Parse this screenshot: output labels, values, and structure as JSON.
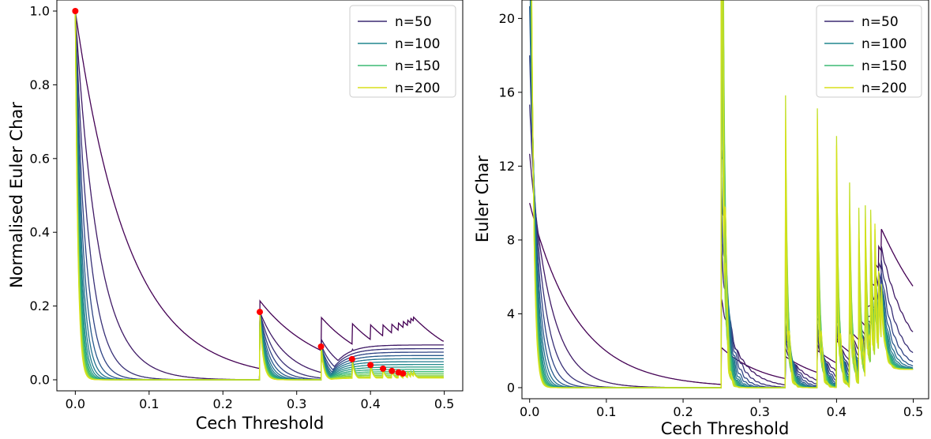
{
  "chart_data": [
    {
      "type": "line",
      "title": "",
      "xlabel": "Cech Threshold",
      "ylabel": "Normalised Euler Char",
      "xlim": [
        -0.025,
        0.525
      ],
      "ylim": [
        -0.03,
        1.03
      ],
      "xticks": [
        "0.0",
        "0.1",
        "0.2",
        "0.3",
        "0.4",
        "0.5"
      ],
      "yticks": [
        "0.0",
        "0.2",
        "0.4",
        "0.6",
        "0.8",
        "1.0"
      ],
      "legend": {
        "position": "top-right",
        "entries": [
          "n=50",
          "n=100",
          "n=150",
          "n=200"
        ],
        "colors": [
          "#3b2a72",
          "#21858d",
          "#3bba74",
          "#d9df1a"
        ]
      },
      "markers": {
        "color": "#ff0000",
        "points": [
          {
            "x": 0.0,
            "y": 1.0
          },
          {
            "x": 0.25,
            "y": 0.184
          },
          {
            "x": 0.333,
            "y": 0.09
          },
          {
            "x": 0.375,
            "y": 0.056
          },
          {
            "x": 0.4,
            "y": 0.04
          },
          {
            "x": 0.417,
            "y": 0.03
          },
          {
            "x": 0.429,
            "y": 0.024
          },
          {
            "x": 0.438,
            "y": 0.02
          },
          {
            "x": 0.444,
            "y": 0.017
          }
        ]
      },
      "series_family": {
        "count": 16,
        "color_start": "#440154",
        "color_end": "#d5e21a",
        "plateau_from": 0.1,
        "plateau_to": 0.005
      }
    },
    {
      "type": "line",
      "title": "",
      "xlabel": "Cech Threshold",
      "ylabel": "Euler Char",
      "xlim": [
        -0.01,
        0.52
      ],
      "ylim": [
        -0.6,
        21
      ],
      "xticks": [
        "0.0",
        "0.1",
        "0.2",
        "0.3",
        "0.4",
        "0.5"
      ],
      "yticks": [
        "0",
        "4",
        "8",
        "12",
        "16",
        "20"
      ],
      "legend": {
        "position": "top-right",
        "entries": [
          "n=50",
          "n=100",
          "n=150",
          "n=200"
        ],
        "colors": [
          "#3b2a72",
          "#21858d",
          "#3bba74",
          "#d9df1a"
        ]
      },
      "series_family": {
        "count": 16,
        "color_start": "#440154",
        "color_end": "#d5e21a",
        "plateau": 1
      }
    }
  ]
}
